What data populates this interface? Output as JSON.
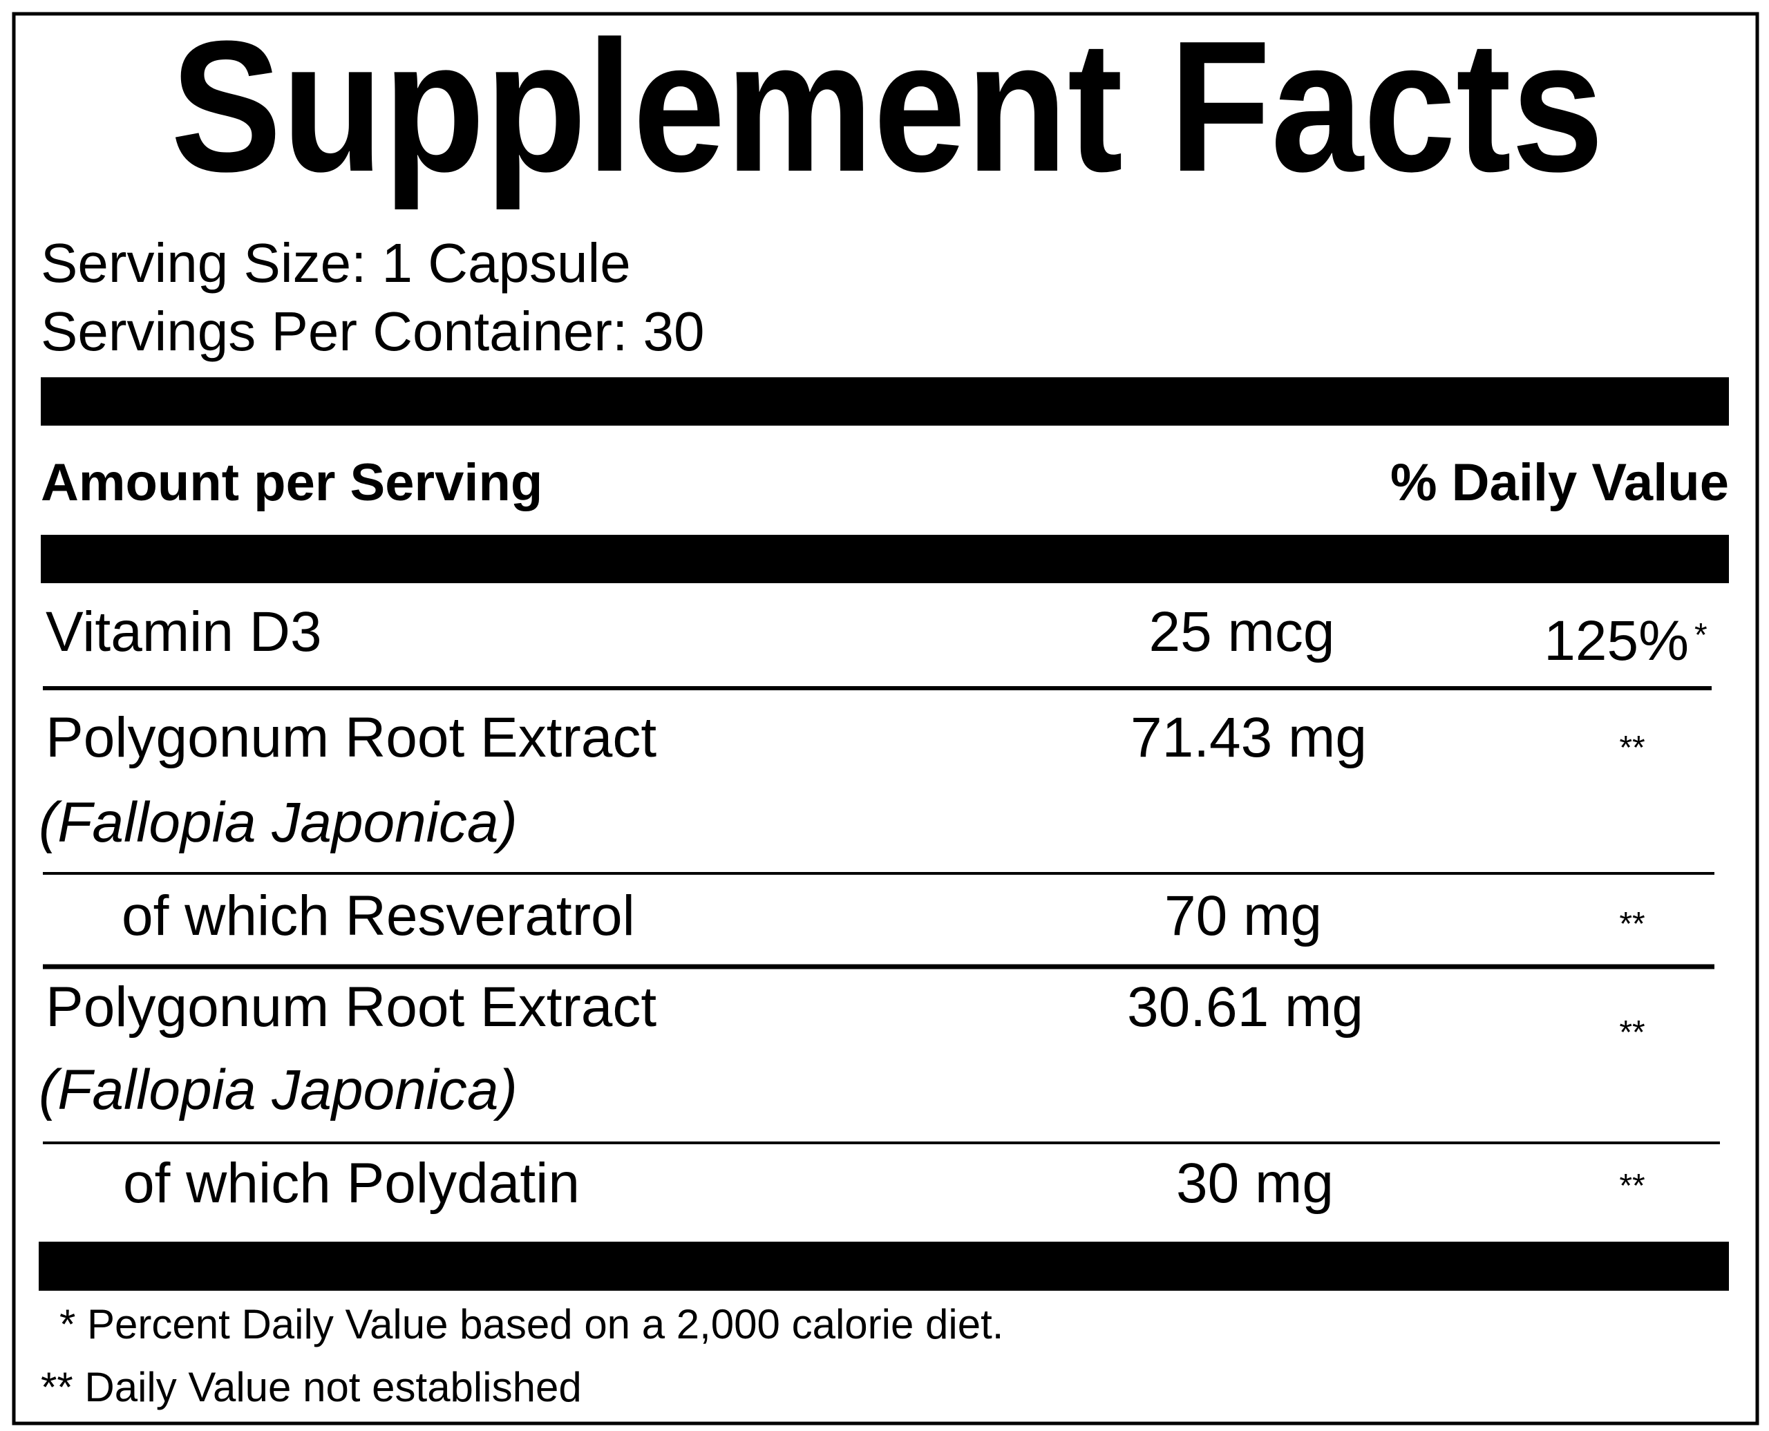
{
  "title": "Supplement Facts",
  "serving_size": "Serving Size: 1 Capsule",
  "servings_per_container": "Servings Per Container: 30",
  "header": {
    "amount": "Amount per Serving",
    "daily_value": "% Daily Value"
  },
  "rows": [
    {
      "name": "Vitamin D3",
      "amount": "25 mcg",
      "daily_value": "125%",
      "daily_value_note": "*"
    },
    {
      "name": "Polygonum Root Extract",
      "subname": "(Fallopia Japonica)",
      "amount": "71.43 mg",
      "daily_value_note": "**"
    },
    {
      "name": "of which Resveratrol",
      "amount": "70 mg",
      "daily_value_note": "**"
    },
    {
      "name": "Polygonum Root Extract",
      "subname": "(Fallopia Japonica)",
      "amount": "30.61 mg",
      "daily_value_note": "**"
    },
    {
      "name": "of which Polydatin",
      "amount": "30 mg",
      "daily_value_note": "**"
    }
  ],
  "footnotes": [
    "* Percent Daily Value based on a 2,000 calorie diet.",
    "** Daily Value not established"
  ]
}
